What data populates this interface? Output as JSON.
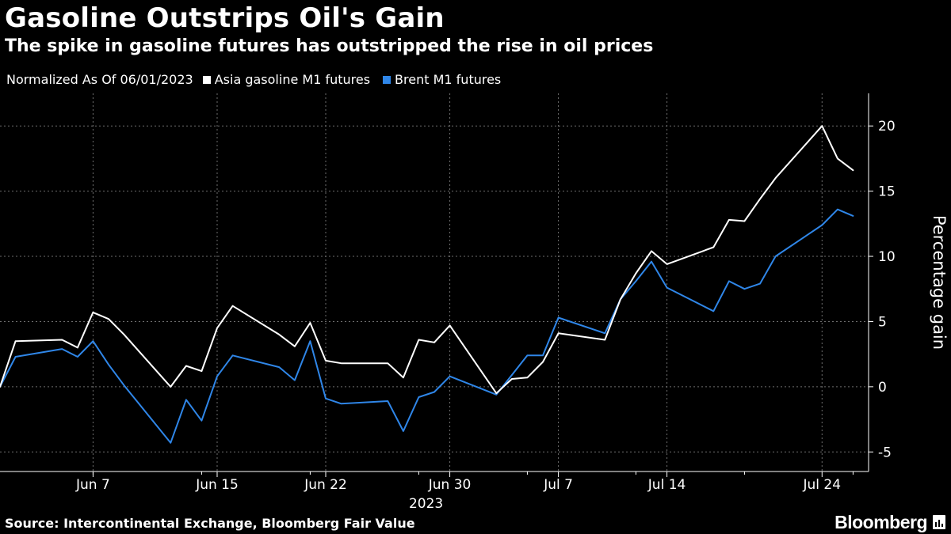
{
  "header": {
    "title": "Gasoline Outstrips Oil's Gain",
    "subtitle": "The spike in gasoline futures has outstripped the rise in oil prices"
  },
  "legend": {
    "note": "Normalized As Of 06/01/2023",
    "items": [
      {
        "label": "Asia gasoline M1 futures",
        "color": "#ffffff"
      },
      {
        "label": "Brent M1 futures",
        "color": "#2f86e8"
      }
    ]
  },
  "footer": {
    "source": "Source: Intercontinental Exchange, Bloomberg Fair Value",
    "brand": "Bloomberg"
  },
  "colors": {
    "background": "#000000",
    "gasoline": "#ffffff",
    "brent": "#2f86e8",
    "grid": "#6e6e6e"
  },
  "chart_data": {
    "type": "line",
    "title": "Gasoline Outstrips Oil's Gain",
    "subtitle": "The spike in gasoline futures has outstripped the rise in oil prices",
    "xlabel": "",
    "ylabel": "Percentage gain",
    "year_label": "2023",
    "ylim": [
      -6.5,
      22.5
    ],
    "xlim": [
      "2023-06-01",
      "2023-07-27"
    ],
    "grid": true,
    "legend_position": "top-left",
    "y_ticks": [
      -5,
      0,
      5,
      10,
      15,
      20
    ],
    "x_ticks": [
      {
        "date": "2023-06-07",
        "label": "Jun 7"
      },
      {
        "date": "2023-06-15",
        "label": "Jun 15"
      },
      {
        "date": "2023-06-22",
        "label": "Jun 22"
      },
      {
        "date": "2023-06-30",
        "label": "Jun 30"
      },
      {
        "date": "2023-07-07",
        "label": "Jul 7"
      },
      {
        "date": "2023-07-14",
        "label": "Jul 14"
      },
      {
        "date": "2023-07-24",
        "label": "Jul 24"
      }
    ],
    "x": [
      "2023-06-01",
      "2023-06-02",
      "2023-06-05",
      "2023-06-06",
      "2023-06-07",
      "2023-06-08",
      "2023-06-09",
      "2023-06-12",
      "2023-06-13",
      "2023-06-14",
      "2023-06-15",
      "2023-06-16",
      "2023-06-19",
      "2023-06-20",
      "2023-06-21",
      "2023-06-22",
      "2023-06-23",
      "2023-06-26",
      "2023-06-27",
      "2023-06-28",
      "2023-06-29",
      "2023-06-30",
      "2023-07-03",
      "2023-07-04",
      "2023-07-05",
      "2023-07-06",
      "2023-07-07",
      "2023-07-10",
      "2023-07-11",
      "2023-07-12",
      "2023-07-13",
      "2023-07-14",
      "2023-07-17",
      "2023-07-18",
      "2023-07-19",
      "2023-07-20",
      "2023-07-21",
      "2023-07-24",
      "2023-07-25",
      "2023-07-26"
    ],
    "series": [
      {
        "name": "Asia gasoline M1 futures",
        "color": "#ffffff",
        "values": [
          0.0,
          3.5,
          3.6,
          3.0,
          5.7,
          5.2,
          4.0,
          0.0,
          1.6,
          1.2,
          4.5,
          6.2,
          4.0,
          3.1,
          4.9,
          2.0,
          1.8,
          1.8,
          0.7,
          3.6,
          3.4,
          4.7,
          -0.5,
          0.6,
          0.7,
          1.9,
          4.1,
          3.6,
          6.7,
          8.7,
          10.4,
          9.4,
          10.7,
          12.8,
          12.7,
          14.4,
          16.0,
          20.0,
          17.5,
          16.6
        ]
      },
      {
        "name": "Brent M1 futures",
        "color": "#2f86e8",
        "values": [
          0.0,
          2.3,
          2.9,
          2.3,
          3.5,
          1.7,
          0.1,
          -4.3,
          -1.0,
          -2.6,
          0.8,
          2.4,
          1.5,
          0.5,
          3.5,
          -0.9,
          -1.3,
          -1.1,
          -3.4,
          -0.8,
          -0.4,
          0.8,
          -0.6,
          0.9,
          2.4,
          2.4,
          5.3,
          4.1,
          6.7,
          8.1,
          9.6,
          7.6,
          5.8,
          8.1,
          7.5,
          7.9,
          10.0,
          12.4,
          13.6,
          13.1
        ]
      }
    ]
  }
}
